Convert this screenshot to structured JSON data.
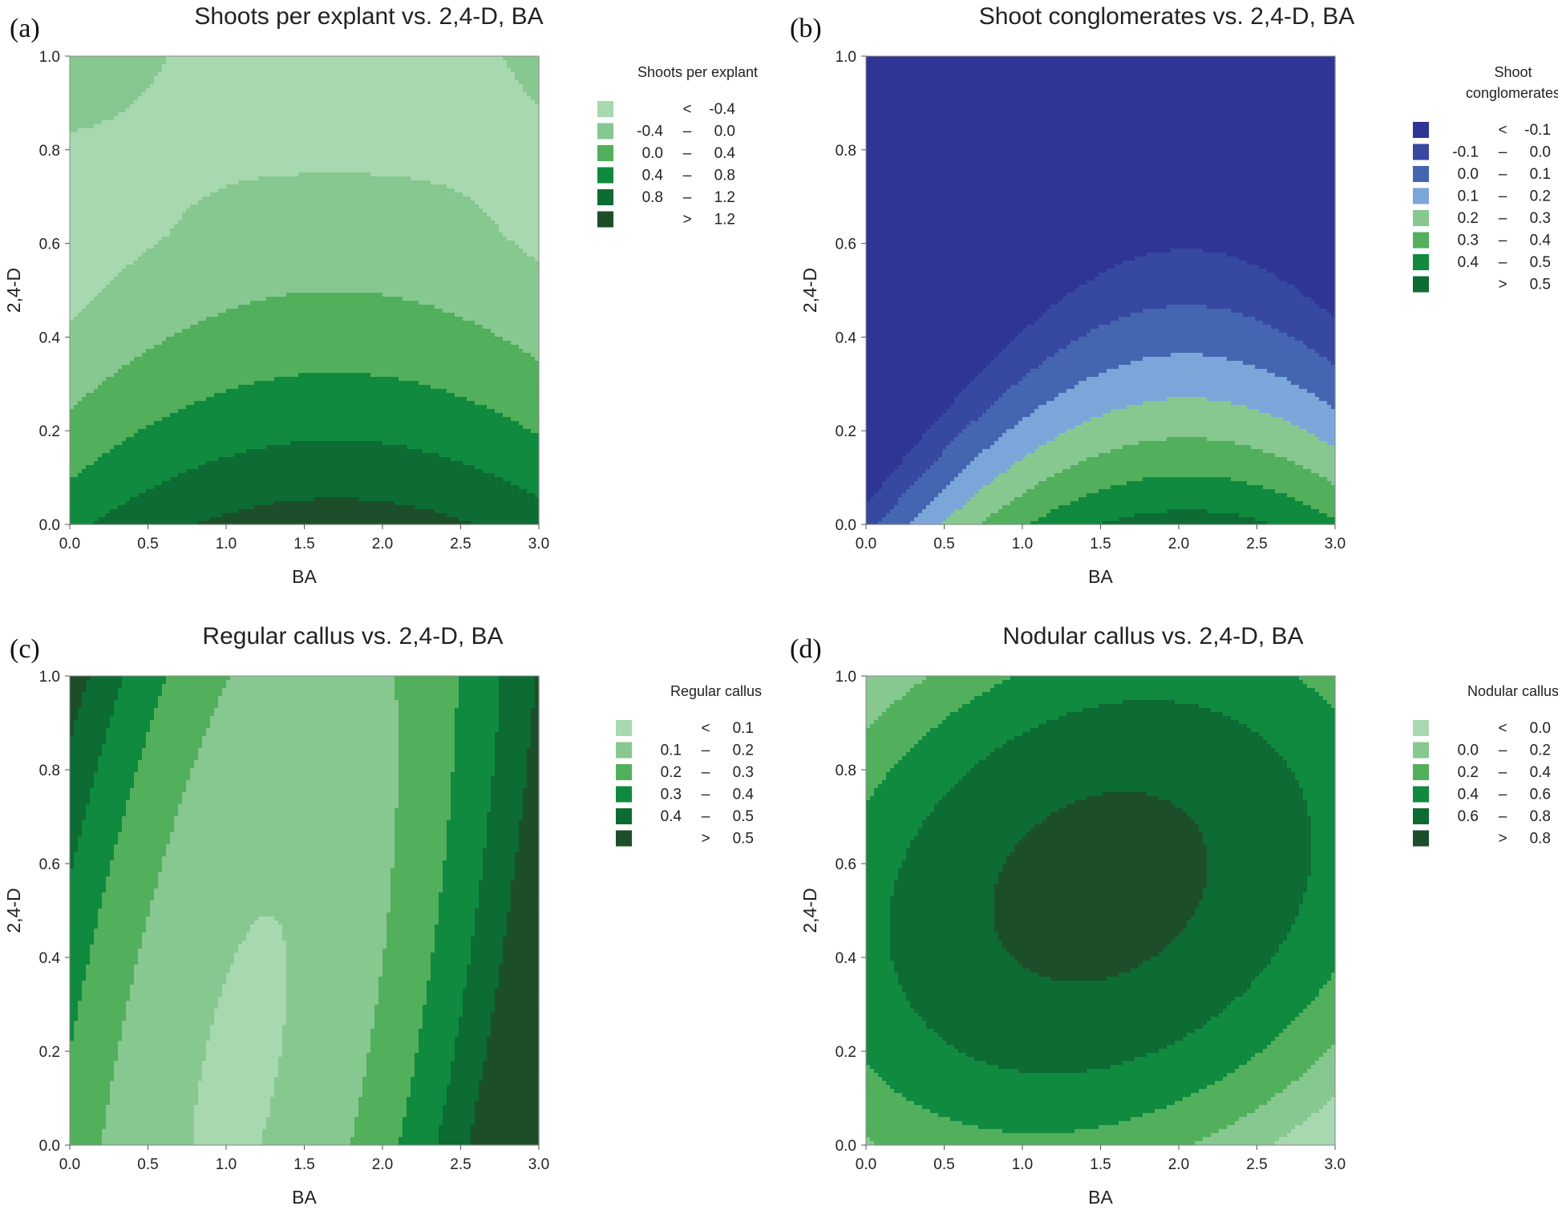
{
  "chart_data": [
    {
      "type": "contour",
      "panel": "(a)",
      "title": "Shoots per explant vs. 2,4-D, BA",
      "xlabel": "BA",
      "ylabel": "2,4-D",
      "xlim": [
        0,
        3
      ],
      "ylim": [
        0,
        1
      ],
      "xticks": [
        "0.0",
        "0.5",
        "1.0",
        "1.5",
        "2.0",
        "2.5",
        "3.0"
      ],
      "yticks": [
        "0.0",
        "0.2",
        "0.4",
        "0.6",
        "0.8",
        "1.0"
      ],
      "legend_title": [
        "Shoots per explant"
      ],
      "levels": [
        {
          "lo": "<",
          "hi": "-0.4",
          "color": "#a8d8b0"
        },
        {
          "lo": "-0.4",
          "hi": "0.0",
          "color": "#86c890"
        },
        {
          "lo": "0.0",
          "hi": "0.4",
          "color": "#52af5c"
        },
        {
          "lo": "0.4",
          "hi": "0.8",
          "color": "#0f8a3e"
        },
        {
          "lo": "0.8",
          "hi": "1.2",
          "color": "#0d6b34"
        },
        {
          "lo": ">",
          "hi": "1.2",
          "color": "#1c4e2a"
        }
      ],
      "model": "shoots",
      "thresholds": [
        -0.4,
        0.0,
        0.4,
        0.8,
        1.2
      ]
    },
    {
      "type": "contour",
      "panel": "(b)",
      "title": "Shoot conglomerates vs. 2,4-D, BA",
      "xlabel": "BA",
      "ylabel": "2,4-D",
      "xlim": [
        0,
        3
      ],
      "ylim": [
        0,
        1
      ],
      "xticks": [
        "0.0",
        "0.5",
        "1.0",
        "1.5",
        "2.0",
        "2.5",
        "3.0"
      ],
      "yticks": [
        "0.0",
        "0.2",
        "0.4",
        "0.6",
        "0.8",
        "1.0"
      ],
      "legend_title": [
        "Shoot",
        "conglomerates"
      ],
      "levels": [
        {
          "lo": "<",
          "hi": "-0.1",
          "color": "#2e3595"
        },
        {
          "lo": "-0.1",
          "hi": "0.0",
          "color": "#3648a0"
        },
        {
          "lo": "0.0",
          "hi": "0.1",
          "color": "#4466b0"
        },
        {
          "lo": "0.1",
          "hi": "0.2",
          "color": "#7aa6da"
        },
        {
          "lo": "0.2",
          "hi": "0.3",
          "color": "#86c890"
        },
        {
          "lo": "0.3",
          "hi": "0.4",
          "color": "#52af5c"
        },
        {
          "lo": "0.4",
          "hi": "0.5",
          "color": "#0f8a3e"
        },
        {
          "lo": ">",
          "hi": "0.5",
          "color": "#0d6b34"
        }
      ],
      "model": "conglomerates",
      "thresholds": [
        -0.1,
        0.0,
        0.1,
        0.2,
        0.3,
        0.4,
        0.5
      ]
    },
    {
      "type": "contour",
      "panel": "(c)",
      "title": "Regular callus vs. 2,4-D, BA",
      "xlabel": "BA",
      "ylabel": "2,4-D",
      "xlim": [
        0,
        3
      ],
      "ylim": [
        0,
        1
      ],
      "xticks": [
        "0.0",
        "0.5",
        "1.0",
        "1.5",
        "2.0",
        "2.5",
        "3.0"
      ],
      "yticks": [
        "0.0",
        "0.2",
        "0.4",
        "0.6",
        "0.8",
        "1.0"
      ],
      "legend_title": [
        "Regular callus"
      ],
      "levels": [
        {
          "lo": "<",
          "hi": "0.1",
          "color": "#a8d8b0"
        },
        {
          "lo": "0.1",
          "hi": "0.2",
          "color": "#86c890"
        },
        {
          "lo": "0.2",
          "hi": "0.3",
          "color": "#52af5c"
        },
        {
          "lo": "0.3",
          "hi": "0.4",
          "color": "#0f8a3e"
        },
        {
          "lo": "0.4",
          "hi": "0.5",
          "color": "#0d6b34"
        },
        {
          "lo": ">",
          "hi": "0.5",
          "color": "#1c4e2a"
        }
      ],
      "model": "regular",
      "thresholds": [
        0.1,
        0.2,
        0.3,
        0.4,
        0.5
      ]
    },
    {
      "type": "contour",
      "panel": "(d)",
      "title": "Nodular callus vs. 2,4-D, BA",
      "xlabel": "BA",
      "ylabel": "2,4-D",
      "xlim": [
        0,
        3
      ],
      "ylim": [
        0,
        1
      ],
      "xticks": [
        "0.0",
        "0.5",
        "1.0",
        "1.5",
        "2.0",
        "2.5",
        "3.0"
      ],
      "yticks": [
        "0.0",
        "0.2",
        "0.4",
        "0.6",
        "0.8",
        "1.0"
      ],
      "legend_title": [
        "Nodular callus"
      ],
      "levels": [
        {
          "lo": "<",
          "hi": "0.0",
          "color": "#a8d8b0"
        },
        {
          "lo": "0.0",
          "hi": "0.2",
          "color": "#86c890"
        },
        {
          "lo": "0.2",
          "hi": "0.4",
          "color": "#52af5c"
        },
        {
          "lo": "0.4",
          "hi": "0.6",
          "color": "#0f8a3e"
        },
        {
          "lo": "0.6",
          "hi": "0.8",
          "color": "#0d6b34"
        },
        {
          "lo": ">",
          "hi": "0.8",
          "color": "#1c4e2a"
        }
      ],
      "model": "nodular",
      "thresholds": [
        0.0,
        0.2,
        0.4,
        0.6,
        0.8
      ]
    }
  ]
}
